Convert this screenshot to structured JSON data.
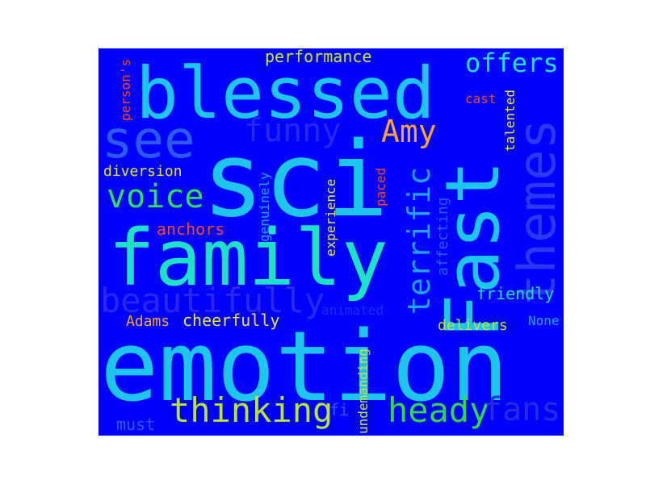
{
  "words": [
    {
      "text": "blessed",
      "color": "#1ec6ee"
    },
    {
      "text": "sci",
      "color": "#1ec6ee"
    },
    {
      "text": "emotion",
      "color": "#1ec6ee"
    },
    {
      "text": "family",
      "color": "#1fe0c8"
    },
    {
      "text": "Fast",
      "color": "#1ec6ee"
    },
    {
      "text": "themes",
      "color": "#2a38ee"
    },
    {
      "text": "see",
      "color": "#2a5aee"
    },
    {
      "text": "funny",
      "color": "#2a28ee"
    },
    {
      "text": "Amy",
      "color": "#f5a43a"
    },
    {
      "text": "voice",
      "color": "#2ee05a"
    },
    {
      "text": "terrific",
      "color": "#1ea6ee"
    },
    {
      "text": "beautifully",
      "color": "#2a28ee"
    },
    {
      "text": "thinking",
      "color": "#b8e43a"
    },
    {
      "text": "heady",
      "color": "#32d846"
    },
    {
      "text": "fans",
      "color": "#2a2ae0"
    },
    {
      "text": "offers",
      "color": "#1ee0ee"
    },
    {
      "text": "performance",
      "color": "#cce43a"
    },
    {
      "text": "diversion",
      "color": "#e0e43a"
    },
    {
      "text": "anchors",
      "color": "#ee4a2a"
    },
    {
      "text": "cheerfully",
      "color": "#e8e43a"
    },
    {
      "text": "Adams",
      "color": "#f5a43a"
    },
    {
      "text": "delivers",
      "color": "#b8e43a"
    },
    {
      "text": "friendly",
      "color": "#1ee0c8"
    },
    {
      "text": "animated",
      "color": "#2a28ee"
    },
    {
      "text": "None",
      "color": "#1ea6ee"
    },
    {
      "text": "must",
      "color": "#2a5aee"
    },
    {
      "text": "fi",
      "color": "#2a5aee"
    },
    {
      "text": "undemanding",
      "color": "#c8e43a"
    },
    {
      "text": "experience",
      "color": "#e8e43a"
    },
    {
      "text": "genuinely",
      "color": "#1ea6ee"
    },
    {
      "text": "paced",
      "color": "#ee4a2a"
    },
    {
      "text": "affecting",
      "color": "#2a5aee"
    },
    {
      "text": "talented",
      "color": "#e8e43a"
    },
    {
      "text": "cast",
      "color": "#ee4a2a"
    },
    {
      "text": "person's",
      "color": "#ee4a2a"
    }
  ]
}
